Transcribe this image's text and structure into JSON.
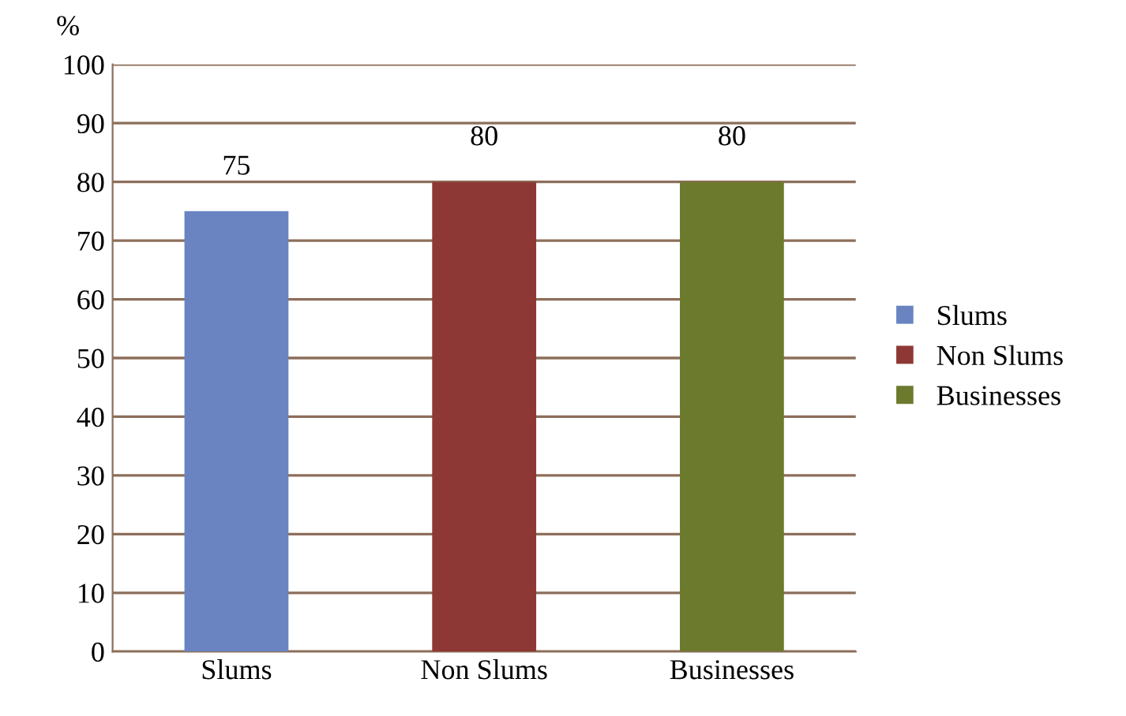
{
  "chart_data": {
    "type": "bar",
    "ylabel": "%",
    "categories": [
      "Slums",
      "Non Slums",
      "Businesses"
    ],
    "series": [
      {
        "name": "Slums",
        "color": "#6a84c2",
        "values": [
          75,
          null,
          null
        ]
      },
      {
        "name": "Non Slums",
        "color": "#8e3835",
        "values": [
          null,
          80,
          null
        ]
      },
      {
        "name": "Businesses",
        "color": "#6c7a2e",
        "values": [
          null,
          null,
          80
        ]
      }
    ],
    "ylim": [
      0,
      100
    ],
    "yticks": [
      0,
      10,
      20,
      30,
      40,
      50,
      60,
      70,
      80,
      90,
      100
    ],
    "grid": "y",
    "legend": "right",
    "data_labels": true
  }
}
